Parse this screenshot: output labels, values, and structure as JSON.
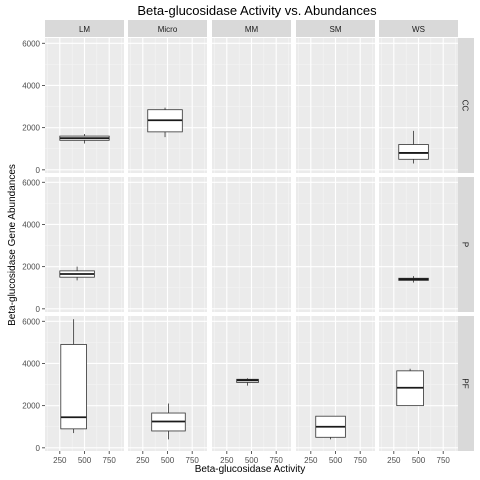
{
  "chart_data": {
    "type": "boxplot",
    "title": "Beta-glucosidase Activity vs. Abundances",
    "xlabel": "Beta-glucosidase Activity",
    "ylabel": "Beta-glucosidase Gene Abundances",
    "columns": [
      "LM",
      "Micro",
      "MM",
      "SM",
      "WS"
    ],
    "rows": [
      "CC",
      "P",
      "PF"
    ],
    "xlim": [
      100,
      900
    ],
    "ylim": [
      -150,
      6250
    ],
    "x_ticks": [
      250,
      500,
      750
    ],
    "y_ticks": [
      0,
      2000,
      4000,
      6000
    ],
    "grid": true,
    "boxes": [
      {
        "row": "CC",
        "col": "LM",
        "xmin": 250,
        "xmax": 750,
        "ymin": 1250,
        "q1": 1400,
        "median": 1500,
        "q3": 1600,
        "ymax": 1700
      },
      {
        "row": "CC",
        "col": "Micro",
        "xmin": 300,
        "xmax": 650,
        "ymin": 1550,
        "q1": 1800,
        "median": 2350,
        "q3": 2850,
        "ymax": 2950
      },
      {
        "row": "CC",
        "col": "WS",
        "xmin": 300,
        "xmax": 600,
        "ymin": 300,
        "q1": 500,
        "median": 800,
        "q3": 1200,
        "ymax": 1850
      },
      {
        "row": "P",
        "col": "LM",
        "xmin": 250,
        "xmax": 600,
        "ymin": 1350,
        "q1": 1500,
        "median": 1650,
        "q3": 1800,
        "ymax": 2000
      },
      {
        "row": "P",
        "col": "WS",
        "xmin": 300,
        "xmax": 600,
        "ymin": 1250,
        "q1": 1350,
        "median": 1400,
        "q3": 1450,
        "ymax": 1550
      },
      {
        "row": "PF",
        "col": "LM",
        "xmin": 260,
        "xmax": 520,
        "ymin": 700,
        "q1": 900,
        "median": 1450,
        "q3": 4900,
        "ymax": 6100
      },
      {
        "row": "PF",
        "col": "Micro",
        "xmin": 340,
        "xmax": 680,
        "ymin": 400,
        "q1": 800,
        "median": 1250,
        "q3": 1650,
        "ymax": 2100
      },
      {
        "row": "PF",
        "col": "MM",
        "xmin": 350,
        "xmax": 570,
        "ymin": 2950,
        "q1": 3100,
        "median": 3200,
        "q3": 3250,
        "ymax": 3300
      },
      {
        "row": "PF",
        "col": "SM",
        "xmin": 300,
        "xmax": 600,
        "ymin": 400,
        "q1": 500,
        "median": 1000,
        "q3": 1500,
        "ymax": 1500
      },
      {
        "row": "PF",
        "col": "WS",
        "xmin": 280,
        "xmax": 550,
        "ymin": 2000,
        "q1": 2000,
        "median": 2850,
        "q3": 3650,
        "ymax": 3750
      }
    ]
  }
}
